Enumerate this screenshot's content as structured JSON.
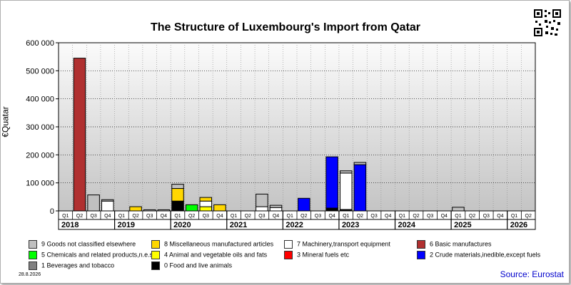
{
  "title": "The Structure of Luxembourg's Import from Qatar",
  "ylabel": "€Quatar",
  "date": "28.8.2026",
  "source": "Source: Eurostat",
  "qr_icon": "qr-code-icon",
  "chart_data": {
    "type": "bar",
    "stacked": true,
    "title": "The Structure of Luxembourg's Import from Qatar",
    "ylabel": "€Quatar",
    "ylim": [
      0,
      600000
    ],
    "yticks": [
      0,
      100000,
      200000,
      300000,
      400000,
      500000,
      600000
    ],
    "ytick_labels": [
      "0",
      "100 000",
      "200 000",
      "300 000",
      "400 000",
      "500 000",
      "600 000"
    ],
    "grid": true,
    "legend_position": "bottom",
    "quarters": [
      "Q1",
      "Q2",
      "Q3",
      "Q4",
      "Q1",
      "Q2",
      "Q3",
      "Q4",
      "Q1",
      "Q2",
      "Q3",
      "Q4",
      "Q1",
      "Q2",
      "Q3",
      "Q4",
      "Q1",
      "Q2",
      "Q3",
      "Q4",
      "Q1",
      "Q2",
      "Q3",
      "Q4",
      "Q1",
      "Q2",
      "Q3",
      "Q4",
      "Q1",
      "Q2",
      "Q3",
      "Q4",
      "Q1",
      "Q2"
    ],
    "years": [
      {
        "label": "2018",
        "quarters": 4
      },
      {
        "label": "2019",
        "quarters": 4
      },
      {
        "label": "2020",
        "quarters": 4
      },
      {
        "label": "2021",
        "quarters": 4
      },
      {
        "label": "2022",
        "quarters": 4
      },
      {
        "label": "2023",
        "quarters": 4
      },
      {
        "label": "2024",
        "quarters": 4
      },
      {
        "label": "2025",
        "quarters": 4
      },
      {
        "label": "2026",
        "quarters": 2
      }
    ],
    "series": [
      {
        "name": "0 Food and live animals",
        "color": "#000000",
        "values": [
          0,
          0,
          0,
          0,
          0,
          0,
          0,
          0,
          35000,
          0,
          0,
          0,
          0,
          0,
          0,
          0,
          0,
          0,
          0,
          10000,
          5000,
          0,
          0,
          0,
          0,
          0,
          0,
          0,
          0,
          0,
          0,
          0,
          0,
          0
        ]
      },
      {
        "name": "1 Beverages and tobacco",
        "color": "#808080",
        "values": [
          0,
          0,
          0,
          0,
          0,
          0,
          0,
          0,
          0,
          0,
          0,
          0,
          0,
          0,
          0,
          0,
          0,
          0,
          0,
          0,
          0,
          0,
          0,
          0,
          0,
          0,
          0,
          0,
          0,
          0,
          0,
          0,
          0,
          0
        ]
      },
      {
        "name": "2 Crude materials,inedible,except fuels",
        "color": "#0000ff",
        "values": [
          0,
          0,
          0,
          0,
          0,
          0,
          0,
          0,
          0,
          0,
          0,
          0,
          0,
          0,
          0,
          0,
          0,
          45000,
          0,
          183000,
          0,
          165000,
          0,
          0,
          0,
          0,
          0,
          0,
          0,
          0,
          0,
          0,
          0,
          0
        ]
      },
      {
        "name": "3 Mineral fuels etc",
        "color": "#ff0000",
        "values": [
          0,
          0,
          0,
          0,
          0,
          0,
          0,
          0,
          0,
          0,
          0,
          0,
          0,
          0,
          0,
          0,
          0,
          0,
          0,
          0,
          0,
          0,
          0,
          0,
          0,
          0,
          0,
          0,
          0,
          0,
          0,
          0,
          0,
          0
        ]
      },
      {
        "name": "4 Animal and vegetable oils and fats",
        "color": "#ffff00",
        "values": [
          0,
          0,
          0,
          0,
          0,
          0,
          0,
          0,
          0,
          0,
          15000,
          0,
          0,
          0,
          0,
          0,
          0,
          0,
          0,
          0,
          0,
          0,
          0,
          0,
          0,
          0,
          0,
          0,
          0,
          0,
          0,
          0,
          0,
          0
        ]
      },
      {
        "name": "5 Chemicals and related products,n.e.s.",
        "color": "#00ff00",
        "values": [
          0,
          0,
          0,
          0,
          0,
          0,
          0,
          0,
          0,
          22000,
          0,
          0,
          0,
          0,
          0,
          0,
          0,
          0,
          0,
          0,
          0,
          0,
          0,
          0,
          0,
          0,
          0,
          0,
          0,
          0,
          0,
          0,
          0,
          0
        ]
      },
      {
        "name": "6 Basic manufactures",
        "color": "#b03030",
        "values": [
          0,
          545000,
          0,
          0,
          0,
          0,
          0,
          0,
          0,
          0,
          0,
          0,
          0,
          0,
          0,
          0,
          0,
          0,
          0,
          0,
          0,
          0,
          0,
          0,
          0,
          0,
          0,
          0,
          0,
          0,
          0,
          0,
          0,
          0
        ]
      },
      {
        "name": "7 Machinery,transport equipment",
        "color": "#ffffff",
        "values": [
          0,
          0,
          0,
          35000,
          0,
          0,
          0,
          0,
          0,
          0,
          20000,
          0,
          0,
          0,
          15000,
          12000,
          0,
          0,
          0,
          0,
          130000,
          0,
          0,
          0,
          0,
          0,
          0,
          0,
          0,
          0,
          0,
          0,
          0,
          0
        ]
      },
      {
        "name": "8 Miscellaneous manufactured articles",
        "color": "#ffd700",
        "values": [
          0,
          0,
          0,
          0,
          0,
          15000,
          0,
          0,
          45000,
          0,
          13000,
          22000,
          0,
          0,
          0,
          0,
          0,
          0,
          0,
          0,
          0,
          0,
          0,
          0,
          0,
          0,
          0,
          0,
          0,
          0,
          0,
          0,
          0,
          0
        ]
      },
      {
        "name": "9 Goods not classified elsewhere",
        "color": "#c0c0c0",
        "values": [
          0,
          0,
          57000,
          5000,
          0,
          0,
          4000,
          4000,
          15000,
          0,
          0,
          0,
          0,
          0,
          45000,
          8000,
          0,
          0,
          0,
          0,
          8000,
          8000,
          0,
          0,
          0,
          0,
          0,
          0,
          13000,
          0,
          0,
          0,
          0,
          0
        ]
      }
    ]
  },
  "legend": [
    {
      "label": "9 Goods not classified elsewhere",
      "color": "#c0c0c0"
    },
    {
      "label": "8 Miscellaneous manufactured articles",
      "color": "#ffd700"
    },
    {
      "label": "7 Machinery,transport equipment",
      "color": "#ffffff"
    },
    {
      "label": "6 Basic manufactures",
      "color": "#b03030"
    },
    {
      "label": "5 Chemicals and related products,n.e.s.",
      "color": "#00ff00"
    },
    {
      "label": "4 Animal and vegetable oils and fats",
      "color": "#ffff00"
    },
    {
      "label": "3 Mineral fuels etc",
      "color": "#ff0000"
    },
    {
      "label": "2 Crude materials,inedible,except fuels",
      "color": "#0000ff"
    },
    {
      "label": "1 Beverages and tobacco",
      "color": "#808080"
    },
    {
      "label": "0 Food and live animals",
      "color": "#000000"
    }
  ]
}
